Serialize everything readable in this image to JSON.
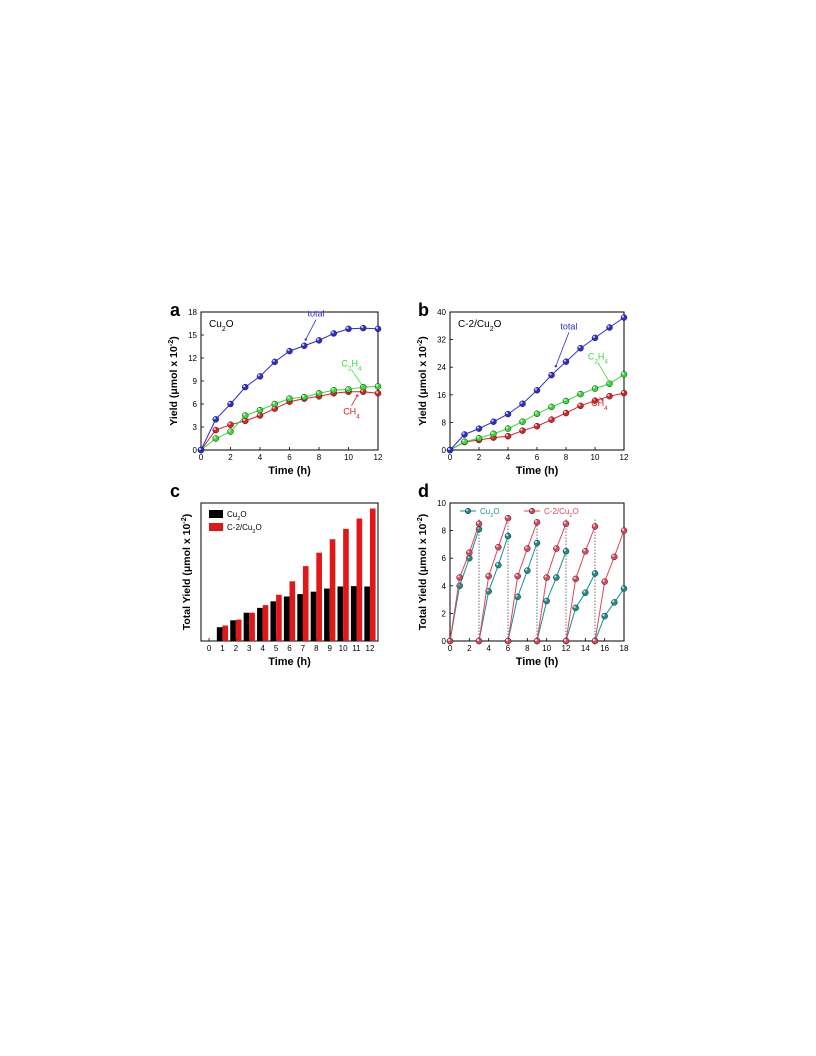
{
  "colors": {
    "total": "#2b2bd9",
    "c2h4": "#33dd33",
    "ch4": "#e02020",
    "cu2o_bar": "#000000",
    "c2cu2o_bar": "#e01818",
    "cu2o_cycle": "#1a8f8f",
    "c2cu2o_cycle": "#e0455a",
    "axis": "#000000"
  },
  "chart_data": [
    {
      "panel_label": "a",
      "type": "line",
      "title": "",
      "sample_label": {
        "main": "Cu",
        "sub": "2",
        "tail": "O"
      },
      "xlabel": "Time (h)",
      "ylabel": {
        "main": "Yield (μmol x 10",
        "sup": "-2",
        "tail": ")"
      },
      "xlim": [
        0,
        12
      ],
      "ylim": [
        0,
        18
      ],
      "xticks": [
        0,
        2,
        4,
        6,
        8,
        10,
        12
      ],
      "yticks": [
        0,
        3,
        6,
        9,
        12,
        15,
        18
      ],
      "x": [
        0,
        1,
        2,
        3,
        4,
        5,
        6,
        7,
        8,
        9,
        10,
        11,
        12
      ],
      "series": [
        {
          "key": "total",
          "name": "total",
          "color": "#2b2bd9",
          "values": [
            0,
            4.0,
            6.0,
            8.2,
            9.6,
            11.5,
            12.9,
            13.6,
            14.3,
            15.2,
            15.8,
            15.9,
            15.8
          ]
        },
        {
          "key": "c2h4",
          "name": "C2H4",
          "color": "#33dd33",
          "values": [
            0,
            1.5,
            2.4,
            4.5,
            5.2,
            6.0,
            6.7,
            6.9,
            7.4,
            7.8,
            7.9,
            8.2,
            8.3
          ]
        },
        {
          "key": "ch4",
          "name": "CH4",
          "color": "#e02020",
          "values": [
            0,
            2.6,
            3.3,
            3.8,
            4.5,
            5.4,
            6.3,
            6.7,
            7.0,
            7.4,
            7.6,
            7.6,
            7.4
          ]
        }
      ],
      "annotations": [
        {
          "text": "total",
          "series": "total"
        },
        {
          "text": {
            "main": "C",
            "sub": "2",
            "tail": "H",
            "sub2": "4"
          },
          "series": "c2h4"
        },
        {
          "text": {
            "main": "CH",
            "sub": "4"
          },
          "series": "ch4"
        }
      ]
    },
    {
      "panel_label": "b",
      "type": "line",
      "title": "",
      "sample_label": {
        "main": "C-2/Cu",
        "sub": "2",
        "tail": "O"
      },
      "xlabel": "Time (h)",
      "ylabel": {
        "main": "Yield (μmol x 10",
        "sup": "-2",
        "tail": ")"
      },
      "xlim": [
        0,
        12
      ],
      "ylim": [
        0,
        40
      ],
      "xticks": [
        0,
        2,
        4,
        6,
        8,
        10,
        12
      ],
      "yticks": [
        0,
        8,
        16,
        24,
        32,
        40
      ],
      "x": [
        0,
        1,
        2,
        3,
        4,
        5,
        6,
        7,
        8,
        9,
        10,
        11,
        12
      ],
      "series": [
        {
          "key": "total",
          "name": "total",
          "color": "#2b2bd9",
          "values": [
            0,
            4.5,
            6.2,
            8.2,
            10.4,
            13.4,
            17.3,
            21.7,
            25.6,
            29.5,
            32.5,
            35.5,
            38.4
          ]
        },
        {
          "key": "c2h4",
          "name": "C2H4",
          "color": "#33dd33",
          "values": [
            0,
            2.4,
            3.4,
            4.7,
            6.2,
            8.2,
            10.5,
            12.5,
            14.2,
            16.2,
            17.8,
            19.2,
            21.9
          ]
        },
        {
          "key": "ch4",
          "name": "CH4",
          "color": "#e02020",
          "values": [
            0,
            2.3,
            2.9,
            3.6,
            4.0,
            5.6,
            6.9,
            8.8,
            10.7,
            12.8,
            14.3,
            15.6,
            16.5
          ]
        }
      ],
      "annotations": [
        {
          "text": "total",
          "series": "total"
        },
        {
          "text": {
            "main": "C",
            "sub": "2",
            "tail": "H",
            "sub2": "4"
          },
          "series": "c2h4"
        },
        {
          "text": {
            "main": "CH",
            "sub": "4"
          },
          "series": "ch4"
        }
      ]
    },
    {
      "panel_label": "c",
      "type": "bar",
      "title": "",
      "xlabel": "Time (h)",
      "ylabel": {
        "main": "Total Yield (μmol x 10",
        "sup": "-2",
        "tail": ")"
      },
      "categories": [
        "0",
        "1",
        "2",
        "3",
        "4",
        "5",
        "6",
        "7",
        "8",
        "9",
        "10",
        "11",
        "12"
      ],
      "ylim": [
        0,
        40
      ],
      "series": [
        {
          "key": "cu2o",
          "name": {
            "main": "Cu",
            "sub": "2",
            "tail": "O"
          },
          "color": "#000000",
          "values": [
            0,
            4.0,
            6.0,
            8.2,
            9.6,
            11.5,
            12.9,
            13.6,
            14.3,
            15.2,
            15.8,
            15.9,
            15.8
          ]
        },
        {
          "key": "c2cu2o",
          "name": {
            "main": "C-2/Cu",
            "sub": "2",
            "tail": "O"
          },
          "color": "#e01818",
          "values": [
            0,
            4.5,
            6.2,
            8.2,
            10.4,
            13.4,
            17.3,
            21.7,
            25.6,
            29.5,
            32.5,
            35.5,
            38.4
          ]
        }
      ],
      "legend": "top-left"
    },
    {
      "panel_label": "d",
      "type": "line",
      "title": "",
      "xlabel": "Time (h)",
      "ylabel": {
        "main": "Total Yield (μmol x 10",
        "sup": "-2",
        "tail": ")"
      },
      "xlim": [
        0,
        18
      ],
      "ylim": [
        0,
        10
      ],
      "xticks": [
        0,
        2,
        4,
        6,
        8,
        10,
        12,
        14,
        16,
        18
      ],
      "yticks": [
        0,
        2,
        4,
        6,
        8,
        10
      ],
      "series": [
        {
          "key": "cu2o",
          "name": {
            "main": "Cu",
            "sub": "2",
            "tail": "O"
          },
          "color": "#1a8f8f",
          "cycles": [
            [
              [
                0,
                0
              ],
              [
                1,
                4.0
              ],
              [
                2,
                6.0
              ],
              [
                3,
                8.1
              ]
            ],
            [
              [
                3,
                0
              ],
              [
                4,
                3.6
              ],
              [
                5,
                5.5
              ],
              [
                6,
                7.6
              ]
            ],
            [
              [
                6,
                0
              ],
              [
                7,
                3.2
              ],
              [
                8,
                5.1
              ],
              [
                9,
                7.1
              ]
            ],
            [
              [
                9,
                0
              ],
              [
                10,
                2.9
              ],
              [
                11,
                4.6
              ],
              [
                12,
                6.5
              ]
            ],
            [
              [
                12,
                0
              ],
              [
                13,
                2.4
              ],
              [
                14,
                3.5
              ],
              [
                15,
                4.9
              ]
            ],
            [
              [
                15,
                0
              ],
              [
                16,
                1.8
              ],
              [
                17,
                2.8
              ],
              [
                18,
                3.8
              ]
            ]
          ]
        },
        {
          "key": "c2cu2o",
          "name": {
            "main": "C-2/Cu",
            "sub": "2",
            "tail": "O"
          },
          "color": "#e0455a",
          "cycles": [
            [
              [
                0,
                0
              ],
              [
                1,
                4.6
              ],
              [
                2,
                6.4
              ],
              [
                3,
                8.5
              ]
            ],
            [
              [
                3,
                0
              ],
              [
                4,
                4.7
              ],
              [
                5,
                6.8
              ],
              [
                6,
                8.9
              ]
            ],
            [
              [
                6,
                0
              ],
              [
                7,
                4.7
              ],
              [
                8,
                6.7
              ],
              [
                9,
                8.6
              ]
            ],
            [
              [
                9,
                0
              ],
              [
                10,
                4.6
              ],
              [
                11,
                6.7
              ],
              [
                12,
                8.5
              ]
            ],
            [
              [
                12,
                0
              ],
              [
                13,
                4.5
              ],
              [
                14,
                6.5
              ],
              [
                15,
                8.3
              ]
            ],
            [
              [
                15,
                0
              ],
              [
                16,
                4.3
              ],
              [
                17,
                6.1
              ],
              [
                18,
                8.0
              ]
            ]
          ]
        }
      ],
      "cycle_breaks": [
        3,
        6,
        9,
        12,
        15
      ],
      "legend": "top"
    }
  ]
}
